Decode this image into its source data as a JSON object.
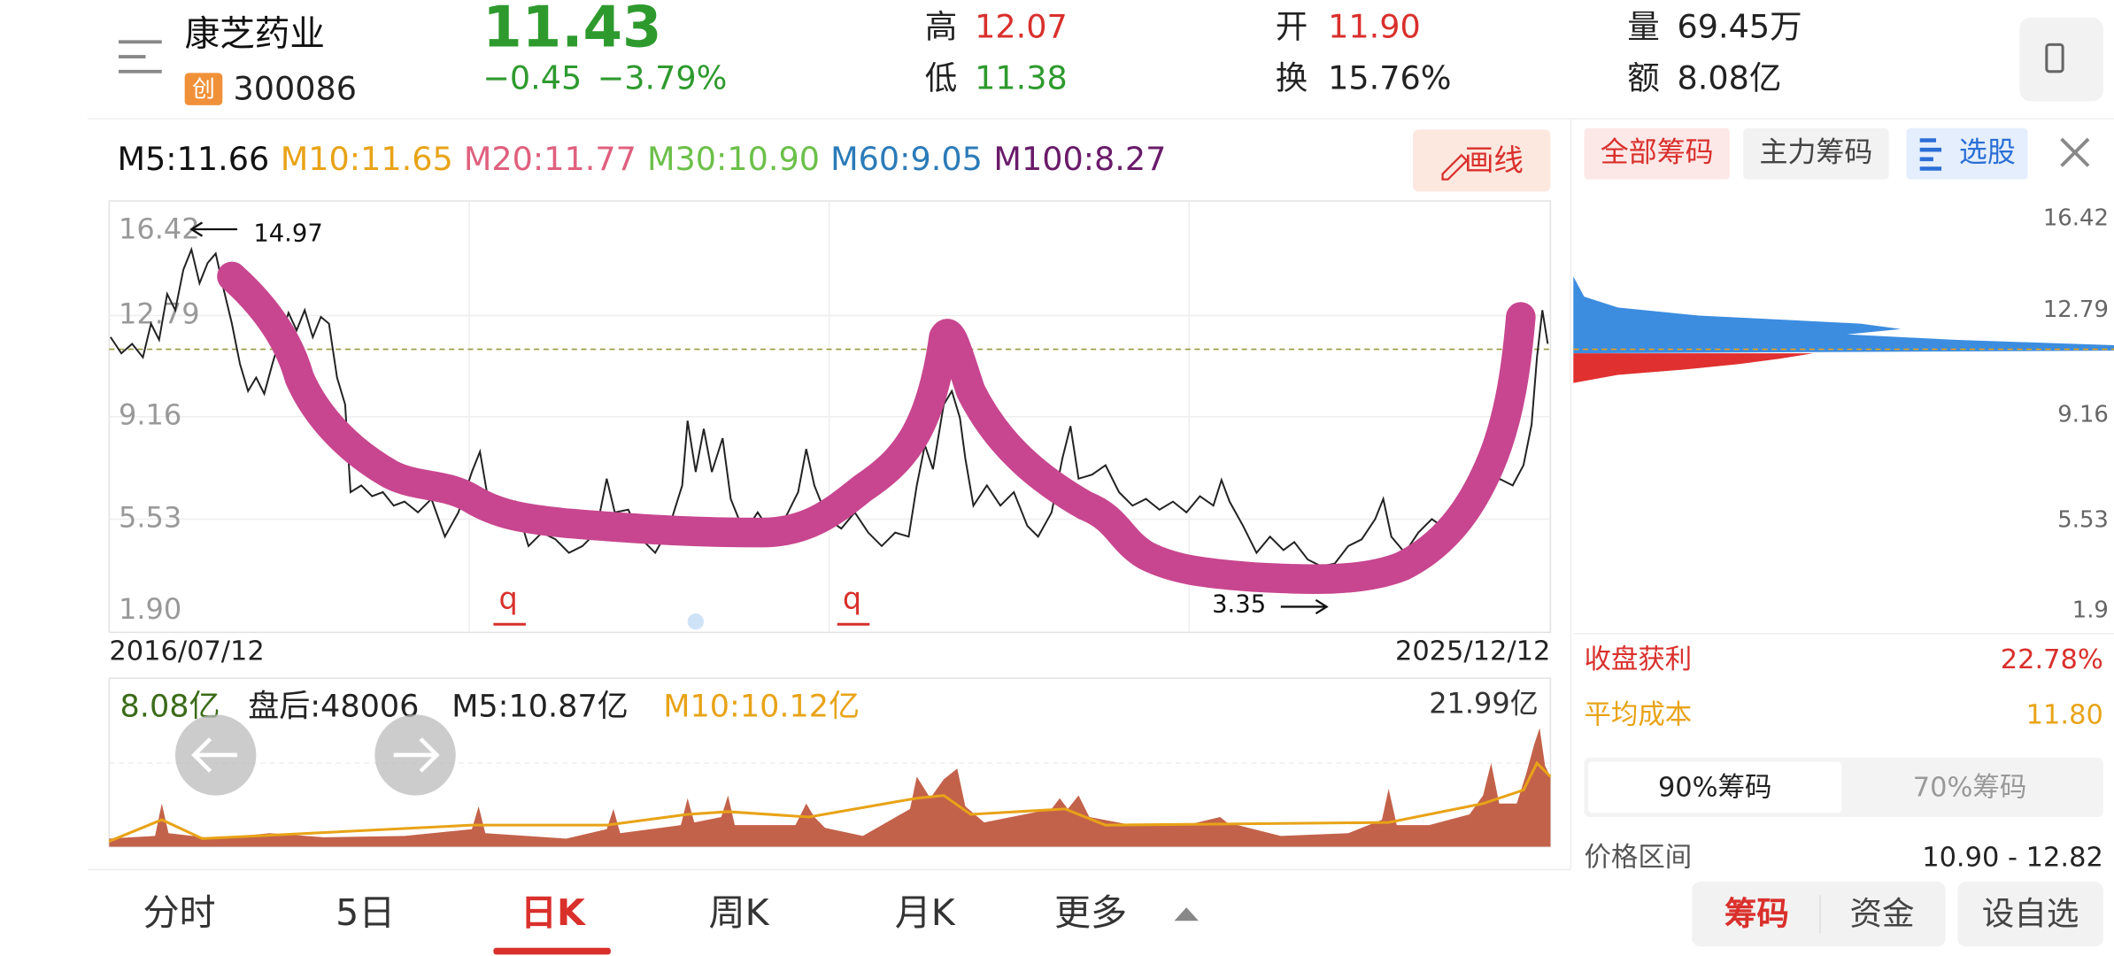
{
  "header": {
    "name": "康芝药业",
    "board": "创",
    "code": "300086",
    "price": "11.43",
    "change": "−0.45",
    "change_pct": "−3.79%",
    "high_label": "高",
    "high": "12.07",
    "low_label": "低",
    "low": "11.38",
    "open_label": "开",
    "open": "11.90",
    "turnover_label": "换",
    "turnover": "15.76%",
    "volume_label": "量",
    "volume": "69.45万",
    "amount_label": "额",
    "amount": "8.08亿"
  },
  "ma": [
    {
      "text": "M5:11.66",
      "color": "#111111"
    },
    {
      "text": "M10:11.65",
      "color": "#e8a317"
    },
    {
      "text": "M20:11.77",
      "color": "#e0607e"
    },
    {
      "text": "M30:10.90",
      "color": "#6cc04a"
    },
    {
      "text": "M60:9.05",
      "color": "#2b7bb9"
    },
    {
      "text": "M100:8.27",
      "color": "#6a1b6a"
    }
  ],
  "draw_button": "画线",
  "chart": {
    "yticks": [
      "16.42",
      "12.79",
      "9.16",
      "5.53",
      "1.90"
    ],
    "high_note": "14.97",
    "low_note": "3.35",
    "marks": [
      "q",
      "q"
    ],
    "start_date": "2016/07/12",
    "end_date": "2025/12/12"
  },
  "volume": {
    "amount": "8.08亿",
    "after_hours": "盘后:48006",
    "m5": "M5:10.87亿",
    "m10": "M10:10.12亿",
    "max": "21.99亿"
  },
  "tabs": [
    "分时",
    "5日",
    "日K",
    "周K",
    "月K",
    "更多"
  ],
  "side": {
    "tabs": [
      "全部筹码",
      "主力筹码",
      "选股"
    ],
    "yticks": [
      "16.42",
      "12.79",
      "9.16",
      "5.53",
      "1.9"
    ],
    "profit_label": "收盘获利",
    "profit": "22.78%",
    "cost_label": "平均成本",
    "cost": "11.80",
    "toggle": [
      "90%筹码",
      "70%筹码"
    ],
    "range_label": "价格区间",
    "range": "10.90 - 12.82"
  },
  "bottom_buttons": [
    "筹码",
    "资金",
    "设自选"
  ]
}
